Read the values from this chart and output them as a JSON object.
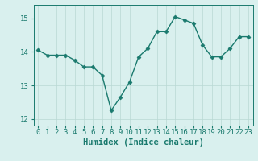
{
  "x": [
    0,
    1,
    2,
    3,
    4,
    5,
    6,
    7,
    8,
    9,
    10,
    11,
    12,
    13,
    14,
    15,
    16,
    17,
    18,
    19,
    20,
    21,
    22,
    23
  ],
  "y": [
    14.05,
    13.9,
    13.9,
    13.9,
    13.75,
    13.55,
    13.55,
    13.3,
    12.25,
    12.65,
    13.1,
    13.85,
    14.1,
    14.6,
    14.6,
    15.05,
    14.95,
    14.85,
    14.2,
    13.85,
    13.85,
    14.1,
    14.45,
    14.45
  ],
  "line_color": "#1a7a6e",
  "marker": "D",
  "marker_size": 2.5,
  "bg_color": "#d9f0ee",
  "grid_color": "#b8d8d4",
  "tick_color": "#1a7a6e",
  "xlabel": "Humidex (Indice chaleur)",
  "xlabel_fontsize": 7.5,
  "ylim": [
    11.8,
    15.4
  ],
  "yticks": [
    12,
    13,
    14,
    15
  ],
  "xticks": [
    0,
    1,
    2,
    3,
    4,
    5,
    6,
    7,
    8,
    9,
    10,
    11,
    12,
    13,
    14,
    15,
    16,
    17,
    18,
    19,
    20,
    21,
    22,
    23
  ],
  "xtick_labels": [
    "0",
    "1",
    "2",
    "3",
    "4",
    "5",
    "6",
    "7",
    "8",
    "9",
    "10",
    "11",
    "12",
    "13",
    "14",
    "15",
    "16",
    "17",
    "18",
    "19",
    "20",
    "21",
    "22",
    "23"
  ],
  "tick_fontsize": 6.5,
  "linewidth": 1.0
}
